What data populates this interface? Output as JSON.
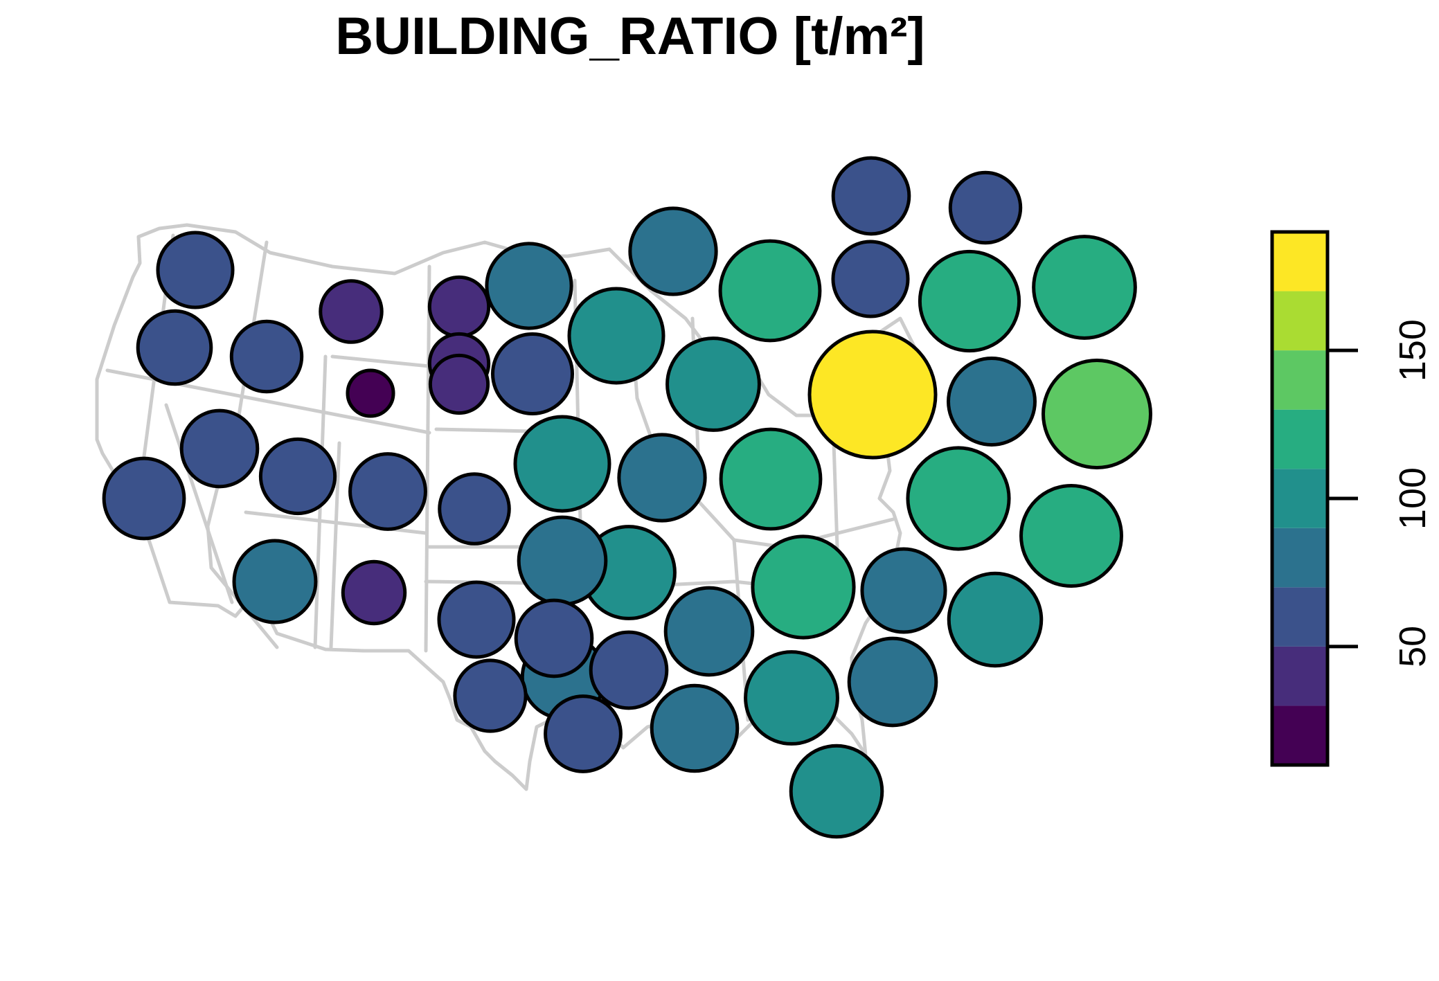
{
  "title": "BUILDING_RATIO [t/m²]",
  "legend": {
    "ticks": [
      {
        "value": 50,
        "label": "50"
      },
      {
        "value": 100,
        "label": "100"
      },
      {
        "value": 150,
        "label": "150"
      }
    ],
    "range": [
      10,
      190
    ],
    "bins": [
      {
        "max": 30,
        "color": "#440154"
      },
      {
        "max": 50,
        "color": "#472D7B"
      },
      {
        "max": 70,
        "color": "#3B528B"
      },
      {
        "max": 90,
        "color": "#2C728E"
      },
      {
        "max": 110,
        "color": "#21908C"
      },
      {
        "max": 130,
        "color": "#27AD81"
      },
      {
        "max": 150,
        "color": "#5DC863"
      },
      {
        "max": 170,
        "color": "#AADC32"
      },
      {
        "max": 190,
        "color": "#FDE725"
      }
    ]
  },
  "basemap": "contiguous-united-states-state-outlines",
  "bubble_scale": "value"
}
